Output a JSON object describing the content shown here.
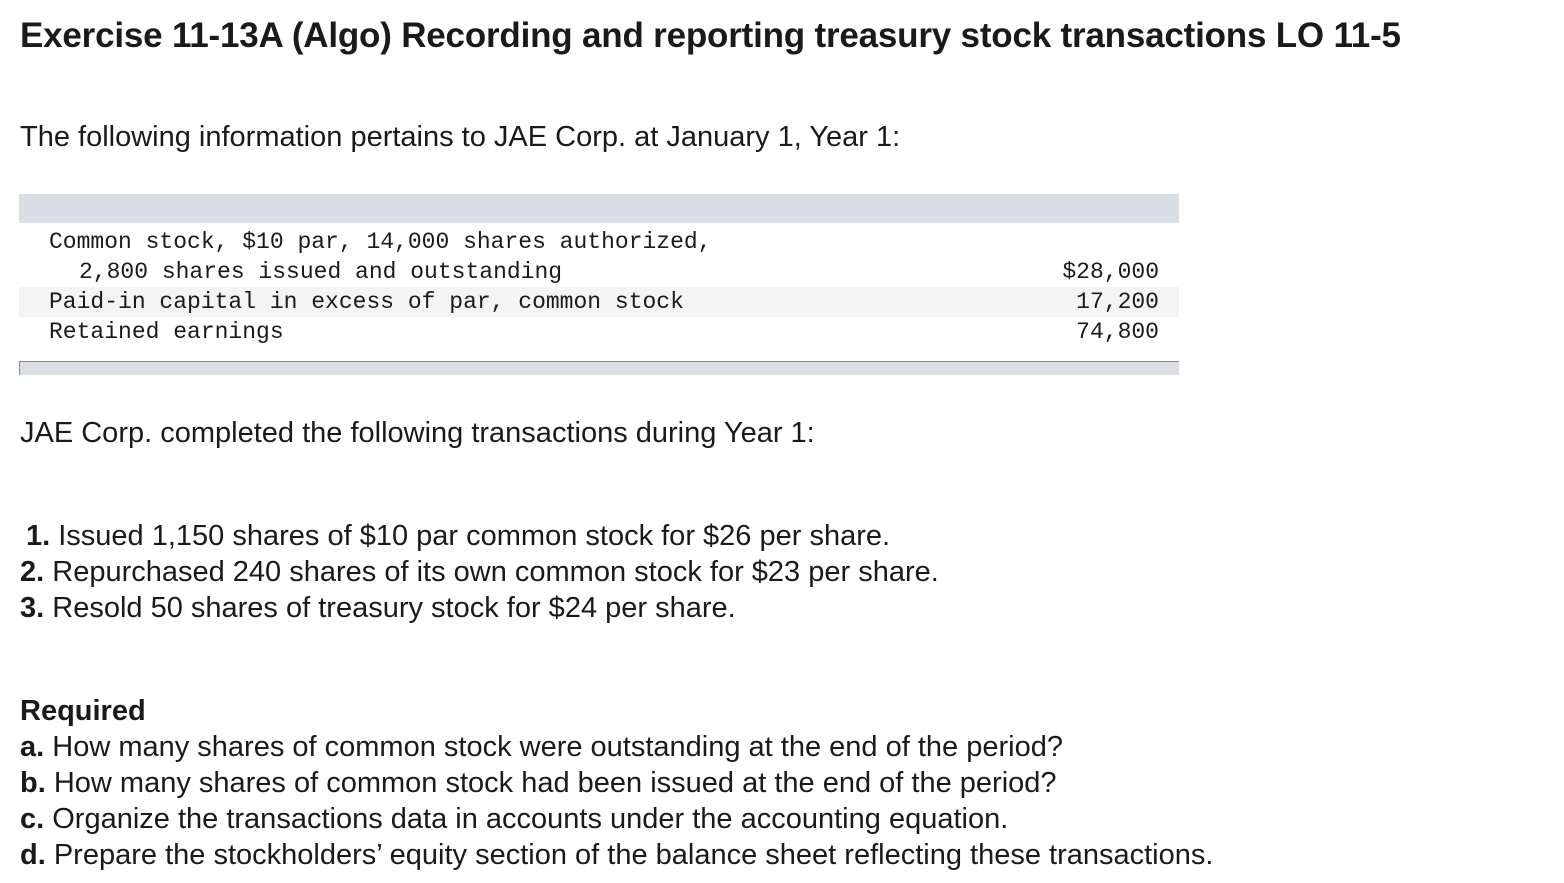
{
  "title": "Exercise 11-13A (Algo) Recording and reporting treasury stock transactions LO 11-5",
  "intro": "The following information pertains to JAE Corp. at January 1, Year 1:",
  "balances": {
    "rows": [
      {
        "label": "Common stock, $10 par, 14,000 shares authorized,",
        "amount": ""
      },
      {
        "label": "2,800 shares issued and outstanding",
        "amount": "$28,000"
      },
      {
        "label": "Paid-in capital in excess of par, common stock",
        "amount": "17,200"
      },
      {
        "label": "Retained earnings",
        "amount": "74,800"
      }
    ]
  },
  "transactions_intro": "JAE Corp. completed the following transactions during Year 1:",
  "transactions": [
    {
      "number": "1.",
      "text": " Issued 1,150 shares of $10 par common stock for $26 per share."
    },
    {
      "number": "2.",
      "text": " Repurchased 240 shares of its own common stock for $23 per share."
    },
    {
      "number": "3.",
      "text": " Resold 50 shares of treasury stock for $24 per share."
    }
  ],
  "required": {
    "heading": "Required",
    "items": [
      {
        "letter": "a.",
        "text": " How many shares of common stock were outstanding at the end of the period?"
      },
      {
        "letter": "b.",
        "text": " How many shares of common stock had been issued at the end of the period?"
      },
      {
        "letter": "c.",
        "text": " Organize the transactions data in accounts under the accounting equation."
      },
      {
        "letter": "d.",
        "text": " Prepare the stockholders’ equity section of the balance sheet reflecting these transactions."
      }
    ]
  }
}
